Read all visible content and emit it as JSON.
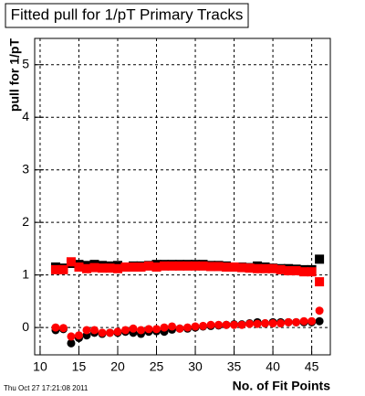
{
  "chart_data": {
    "type": "scatter",
    "title": "Fitted pull for 1/pT Primary Tracks",
    "x_label": "No. of Fit Points",
    "y_label": "pull for 1/pT",
    "timestamp": "Thu Oct 27 17:21:08 2011",
    "x": [
      12,
      13,
      14,
      15,
      16,
      17,
      18,
      19,
      20,
      21,
      22,
      23,
      24,
      25,
      26,
      27,
      28,
      29,
      30,
      31,
      32,
      33,
      34,
      35,
      36,
      37,
      38,
      39,
      40,
      41,
      42,
      43,
      44,
      45,
      46
    ],
    "series": [
      {
        "color": "#000000",
        "marker": "square",
        "values": [
          1.15,
          1.13,
          1.22,
          1.2,
          1.18,
          1.2,
          1.18,
          1.17,
          1.18,
          1.15,
          1.17,
          1.17,
          1.18,
          1.2,
          1.2,
          1.2,
          1.2,
          1.2,
          1.2,
          1.2,
          1.18,
          1.18,
          1.17,
          1.15,
          1.15,
          1.14,
          1.17,
          1.15,
          1.13,
          1.12,
          1.12,
          1.11,
          1.1,
          1.1,
          1.3
        ]
      },
      {
        "color": "#ff0000",
        "marker": "square",
        "values": [
          1.1,
          1.1,
          1.25,
          1.15,
          1.12,
          1.14,
          1.13,
          1.13,
          1.12,
          1.15,
          1.15,
          1.15,
          1.17,
          1.15,
          1.17,
          1.17,
          1.17,
          1.17,
          1.17,
          1.17,
          1.16,
          1.16,
          1.15,
          1.15,
          1.14,
          1.13,
          1.12,
          1.12,
          1.12,
          1.1,
          1.08,
          1.08,
          1.06,
          1.06,
          0.87
        ]
      },
      {
        "color": "#000000",
        "marker": "circle",
        "values": [
          -0.05,
          -0.03,
          -0.3,
          -0.2,
          -0.15,
          -0.1,
          -0.12,
          -0.1,
          -0.1,
          -0.08,
          -0.1,
          -0.12,
          -0.08,
          -0.07,
          -0.08,
          -0.04,
          -0.02,
          -0.02,
          0,
          0.02,
          0.03,
          0.04,
          0.05,
          0.06,
          0.06,
          0.08,
          0.1,
          0.08,
          0.1,
          0.1,
          0.1,
          0.1,
          0.1,
          0.1,
          0.12
        ]
      },
      {
        "color": "#ff0000",
        "marker": "circle",
        "values": [
          0,
          -0.01,
          -0.17,
          -0.15,
          -0.05,
          -0.05,
          -0.1,
          -0.1,
          -0.08,
          -0.05,
          -0.02,
          -0.05,
          -0.03,
          -0.03,
          0,
          0.02,
          -0.02,
          0,
          0.02,
          0.03,
          0.05,
          0.05,
          0.05,
          0.05,
          0.05,
          0.07,
          0.07,
          0.08,
          0.08,
          0.08,
          0.1,
          0.1,
          0.12,
          0.12,
          0.32
        ]
      }
    ],
    "xlim": [
      9.3,
      47.4
    ],
    "ylim": [
      -0.52,
      5.5
    ],
    "xticks": [
      10,
      15,
      20,
      25,
      30,
      35,
      40,
      45
    ],
    "yticks": [
      0,
      1,
      2,
      3,
      4,
      5
    ],
    "grid": true
  }
}
